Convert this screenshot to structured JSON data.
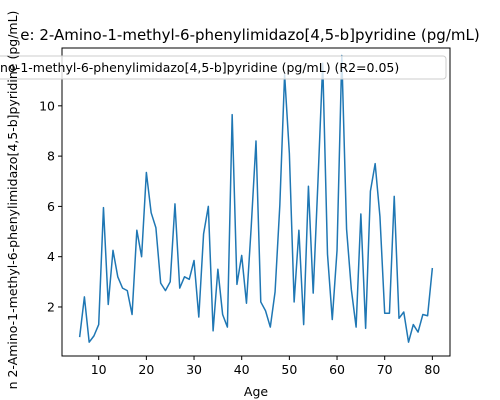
{
  "chart_data": {
    "type": "line",
    "title": "e: 2-Amino-1-methyl-6-phenylimidazo[4,5-b]pyridine (pg/mL)",
    "xlabel": "Age",
    "ylabel": "n 2-Amino-1-methyl-6-phenylimidazo[4,5-b]pyridine (pg/mL)",
    "legend_text": "no-1-methyl-6-phenylimidazo[4,5-b]pyridine (pg/mL) (R2=0.05)",
    "legend_placement": "top",
    "xlim": [
      2.3,
      83.7
    ],
    "ylim": [
      0.05,
      12.3
    ],
    "xticks": [
      10,
      20,
      30,
      40,
      50,
      60,
      70,
      80
    ],
    "yticks": [
      2,
      4,
      6,
      8,
      10
    ],
    "grid": false,
    "series": [
      {
        "color": "#1f77b4",
        "x": [
          6,
          7,
          8,
          9,
          10,
          11,
          12,
          13,
          14,
          15,
          16,
          17,
          18,
          19,
          20,
          21,
          22,
          23,
          24,
          25,
          26,
          27,
          28,
          29,
          30,
          31,
          32,
          33,
          34,
          35,
          36,
          37,
          38,
          39,
          40,
          41,
          42,
          43,
          44,
          45,
          46,
          47,
          48,
          49,
          50,
          51,
          52,
          53,
          54,
          55,
          56,
          57,
          58,
          59,
          60,
          61,
          62,
          63,
          64,
          65,
          66,
          67,
          68,
          69,
          70,
          71,
          72,
          73,
          74,
          75,
          76,
          77,
          78,
          79,
          80
        ],
        "y": [
          0.8,
          2.4,
          0.6,
          0.85,
          1.3,
          5.95,
          2.1,
          4.25,
          3.2,
          2.75,
          2.65,
          1.7,
          5.05,
          4.0,
          7.35,
          5.75,
          5.15,
          2.95,
          2.65,
          3.0,
          6.1,
          2.75,
          3.2,
          3.1,
          3.85,
          1.6,
          4.9,
          6.0,
          1.05,
          3.5,
          1.7,
          1.2,
          9.65,
          2.9,
          4.05,
          2.15,
          5.2,
          8.6,
          2.2,
          1.85,
          1.2,
          2.6,
          6.05,
          11.25,
          8.1,
          2.2,
          5.05,
          1.3,
          6.8,
          2.55,
          7.0,
          11.7,
          4.1,
          1.5,
          4.25,
          12.0,
          5.1,
          2.7,
          1.2,
          5.7,
          1.15,
          6.6,
          7.7,
          5.6,
          1.75,
          1.75,
          6.4,
          1.55,
          1.8,
          0.6,
          1.3,
          1.0,
          1.7,
          1.65,
          3.55
        ]
      }
    ]
  }
}
